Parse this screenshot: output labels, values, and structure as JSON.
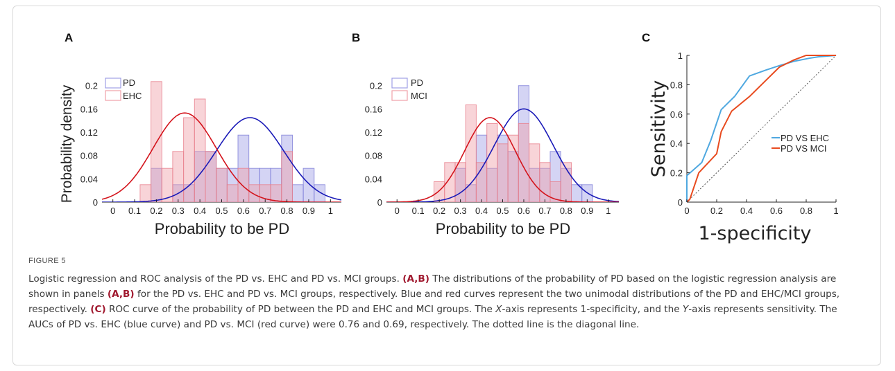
{
  "figure": {
    "label": "FIGURE 5",
    "caption_parts": [
      {
        "t": "Logistic regression and ROC analysis of the PD vs. EHC and PD vs. MCI groups. "
      },
      {
        "t": "(A,B)",
        "b": true
      },
      {
        "t": " The distributions of the probability of PD based on the logistic regression analysis are shown in panels "
      },
      {
        "t": "(A,B)",
        "b": true
      },
      {
        "t": " for the PD vs. EHC and PD vs. MCI groups, respectively. Blue and red curves represent the two unimodal distributions of the PD and EHC/MCI groups, respectively. "
      },
      {
        "t": "(C)",
        "b": true
      },
      {
        "t": " ROC curve of the probability of PD between the PD and EHC and MCI groups. The "
      },
      {
        "t": "X",
        "i": true
      },
      {
        "t": "-axis represents 1-specificity, and the "
      },
      {
        "t": "Y",
        "i": true
      },
      {
        "t": "-axis represents sensitivity. The AUCs of PD vs. EHC (blue curve) and PD vs. MCI (red curve) were 0.76 and 0.69, respectively. The dotted line is the diagonal line."
      }
    ]
  },
  "colors": {
    "blue": "#1a1ab8",
    "red": "#d4141c",
    "blue_bar": "#9f9fe6",
    "red_bar": "#f0a0a8",
    "roc_blue": "#4fa8e0",
    "roc_red": "#e84a1e"
  },
  "chart_data": [
    {
      "panel": "A",
      "type": "bar",
      "xlabel": "Probability to be PD",
      "ylabel": "Probability density",
      "xlim": [
        -0.05,
        1.05
      ],
      "ylim": [
        0,
        0.24
      ],
      "xticks": [
        "0",
        "0.1",
        "0.2",
        "0.3",
        "0.4",
        "0.5",
        "0.6",
        "0.7",
        "0.8",
        "0.9",
        "1"
      ],
      "yticks": [
        "0",
        "0.04",
        "0.08",
        "0.12",
        "0.16",
        "0.2"
      ],
      "bin_width": 0.05,
      "legend": [
        "PD",
        "EHC"
      ],
      "series": [
        {
          "name": "PD",
          "bins": [
            [
              0.2,
              0.058
            ],
            [
              0.3,
              0.03
            ],
            [
              0.35,
              0.03
            ],
            [
              0.4,
              0.087
            ],
            [
              0.45,
              0.087
            ],
            [
              0.5,
              0.058
            ],
            [
              0.55,
              0.058
            ],
            [
              0.6,
              0.115
            ],
            [
              0.65,
              0.058
            ],
            [
              0.7,
              0.058
            ],
            [
              0.75,
              0.058
            ],
            [
              0.8,
              0.115
            ],
            [
              0.85,
              0.03
            ],
            [
              0.9,
              0.058
            ],
            [
              0.95,
              0.03
            ]
          ]
        },
        {
          "name": "EHC",
          "bins": [
            [
              0.15,
              0.03
            ],
            [
              0.2,
              0.207
            ],
            [
              0.25,
              0.058
            ],
            [
              0.3,
              0.087
            ],
            [
              0.35,
              0.145
            ],
            [
              0.4,
              0.177
            ],
            [
              0.45,
              0.087
            ],
            [
              0.5,
              0.058
            ],
            [
              0.55,
              0.03
            ],
            [
              0.6,
              0.058
            ],
            [
              0.65,
              0.03
            ],
            [
              0.7,
              0.03
            ],
            [
              0.75,
              0.03
            ],
            [
              0.8,
              0.087
            ]
          ]
        }
      ],
      "curves": [
        {
          "name": "PD",
          "mu": 0.63,
          "sigma": 0.155,
          "peak": 0.145
        },
        {
          "name": "EHC",
          "mu": 0.33,
          "sigma": 0.145,
          "peak": 0.153
        }
      ]
    },
    {
      "panel": "B",
      "type": "bar",
      "xlabel": "Probability to be PD",
      "ylabel": "",
      "xlim": [
        -0.05,
        1.05
      ],
      "ylim": [
        0,
        0.24
      ],
      "xticks": [
        "0",
        "0.1",
        "0.2",
        "0.3",
        "0.4",
        "0.5",
        "0.6",
        "0.7",
        "0.8",
        "0.9",
        "1"
      ],
      "yticks": [
        "0",
        "0.04",
        "0.08",
        "0.12",
        "0.16",
        "0.2"
      ],
      "bin_width": 0.05,
      "legend": [
        "PD",
        "MCI"
      ],
      "series": [
        {
          "name": "PD",
          "bins": [
            [
              0.3,
              0.058
            ],
            [
              0.35,
              0.03
            ],
            [
              0.4,
              0.115
            ],
            [
              0.45,
              0.058
            ],
            [
              0.5,
              0.115
            ],
            [
              0.55,
              0.087
            ],
            [
              0.6,
              0.2
            ],
            [
              0.65,
              0.058
            ],
            [
              0.7,
              0.058
            ],
            [
              0.75,
              0.087
            ],
            [
              0.8,
              0.058
            ],
            [
              0.85,
              0.03
            ],
            [
              0.9,
              0.03
            ]
          ]
        },
        {
          "name": "MCI",
          "bins": [
            [
              0.2,
              0.035
            ],
            [
              0.25,
              0.068
            ],
            [
              0.3,
              0.068
            ],
            [
              0.35,
              0.167
            ],
            [
              0.4,
              0.068
            ],
            [
              0.45,
              0.135
            ],
            [
              0.5,
              0.1
            ],
            [
              0.55,
              0.115
            ],
            [
              0.6,
              0.135
            ],
            [
              0.65,
              0.1
            ],
            [
              0.7,
              0.068
            ],
            [
              0.75,
              0.035
            ],
            [
              0.8,
              0.068
            ]
          ]
        }
      ],
      "curves": [
        {
          "name": "PD",
          "mu": 0.6,
          "sigma": 0.14,
          "peak": 0.16
        },
        {
          "name": "MCI",
          "mu": 0.44,
          "sigma": 0.12,
          "peak": 0.145
        }
      ]
    },
    {
      "panel": "C",
      "type": "line",
      "xlabel": "1-specificity",
      "ylabel": "Sensitivity",
      "xlim": [
        0,
        1
      ],
      "ylim": [
        0,
        1
      ],
      "xticks": [
        "0",
        "0.2",
        "0.4",
        "0.6",
        "0.8",
        "1"
      ],
      "yticks": [
        "0",
        "0.2",
        "0.4",
        "0.6",
        "0.8",
        "1"
      ],
      "legend": [
        "PD VS EHC",
        "PD VS MCI"
      ],
      "series": [
        {
          "name": "PD VS EHC",
          "x": [
            0,
            0,
            0.1,
            0.16,
            0.23,
            0.32,
            0.42,
            0.53,
            0.62,
            0.72,
            0.82,
            0.88,
            1
          ],
          "y": [
            0,
            0.18,
            0.27,
            0.42,
            0.63,
            0.72,
            0.86,
            0.9,
            0.93,
            0.96,
            0.98,
            0.99,
            1
          ]
        },
        {
          "name": "PD VS MCI",
          "x": [
            0,
            0.02,
            0.08,
            0.2,
            0.23,
            0.3,
            0.42,
            0.52,
            0.62,
            0.72,
            0.8,
            0.83,
            0.9,
            1
          ],
          "y": [
            0,
            0.02,
            0.2,
            0.33,
            0.48,
            0.62,
            0.72,
            0.82,
            0.92,
            0.97,
            1,
            1,
            1,
            1
          ]
        }
      ],
      "reference_line": "dotted diagonal"
    }
  ]
}
